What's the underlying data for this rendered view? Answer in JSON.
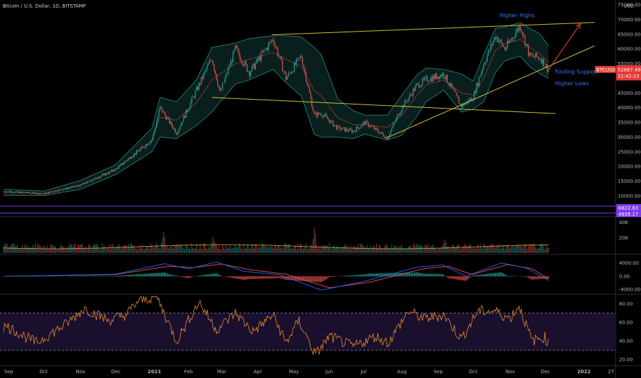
{
  "header": {
    "title": "Bitcoin / U.S. Dollar, 1D, BITSTAMP",
    "currency": "USD"
  },
  "colors": {
    "background": "#000000",
    "up": "#26a69a",
    "down": "#ef5350",
    "bollinger": "#2a8f87",
    "bollinger_fill": "#0b2a27",
    "basis": "#c2454a",
    "trendline": "#d4c234",
    "arrow": "#e53935",
    "annotation": "#3179f5",
    "volume_ma": "#f0a030",
    "macd": "#2962ff",
    "signal": "#ef5350",
    "rsi": "#e8902a",
    "rsi_band": "#1b0f2e",
    "purple_line": "#7c3aed",
    "price_badge": "#e53935"
  },
  "annotations": {
    "higher_highs": "Higher Highs",
    "finding_support": "Finding Support?",
    "higher_lows": "Higher Lows"
  },
  "badges": {
    "symbol": "BTCUSD",
    "price": "52887.49",
    "countdown": "21:42:23",
    "purple_top": "6822.83",
    "purple_bottom": "4939.17"
  },
  "chart_data": [
    {
      "type": "line",
      "name": "price",
      "title": "Bitcoin / U.S. Dollar, 1D, BITSTAMP",
      "x_ticks": [
        "Sep",
        "Oct",
        "Nov",
        "Dec",
        "2021",
        "Feb",
        "Mar",
        "Apr",
        "May",
        "Jun",
        "Jul",
        "Aug",
        "Sep",
        "Oct",
        "Nov",
        "Dec",
        "2022",
        "27"
      ],
      "y_ticks": [
        10000,
        15000,
        20000,
        25000,
        30000,
        35000,
        40000,
        45000,
        50000,
        55000,
        60000,
        65000,
        70000,
        75000
      ],
      "y_tick_labels": [
        "10000.00",
        "15000.00",
        "20000.00",
        "25000.00",
        "30000.00",
        "35000.00",
        "40000.00",
        "45000.00",
        "50000.00",
        "55000.00",
        "60000.00",
        "65000.00",
        "70000.00",
        "75000.00"
      ],
      "ylim": [
        5000,
        75000
      ],
      "series": [
        {
          "x": [
            "2020-09-01",
            "2020-10-01",
            "2020-11-01",
            "2020-12-01",
            "2021-01-01",
            "2021-01-08",
            "2021-01-22",
            "2021-02-08",
            "2021-02-21",
            "2021-02-28",
            "2021-03-13",
            "2021-03-25",
            "2021-04-14",
            "2021-04-25",
            "2021-05-08",
            "2021-05-19",
            "2021-05-25",
            "2021-06-08",
            "2021-06-21",
            "2021-07-01",
            "2021-07-20",
            "2021-08-01",
            "2021-08-14",
            "2021-08-22",
            "2021-09-06",
            "2021-09-21",
            "2021-10-01",
            "2021-10-10",
            "2021-10-20",
            "2021-10-28",
            "2021-11-10",
            "2021-11-18",
            "2021-11-27",
            "2021-12-04"
          ],
          "values": [
            11500,
            10700,
            13500,
            19000,
            29000,
            40000,
            31500,
            46000,
            57000,
            45000,
            60000,
            52000,
            63500,
            50000,
            57500,
            37500,
            38000,
            33000,
            32000,
            35000,
            29800,
            39800,
            47500,
            49500,
            51500,
            40500,
            43500,
            55000,
            64500,
            60000,
            68000,
            57500,
            57000,
            52887
          ]
        }
      ],
      "bollinger_upper": [
        12200,
        11600,
        15200,
        20500,
        33000,
        43500,
        42000,
        49500,
        60500,
        61000,
        62000,
        63500,
        64500,
        64500,
        64000,
        60500,
        58000,
        43000,
        39000,
        37500,
        37500,
        44000,
        51000,
        53500,
        53000,
        51500,
        49000,
        58000,
        67000,
        67500,
        69000,
        67000,
        65000,
        61000
      ],
      "bollinger_lower": [
        10200,
        10100,
        12200,
        17200,
        25000,
        30000,
        29500,
        34000,
        38500,
        42000,
        48000,
        49500,
        53000,
        48500,
        44000,
        31000,
        30000,
        30000,
        29500,
        31000,
        29000,
        30500,
        37000,
        42000,
        46000,
        38500,
        39500,
        42000,
        52000,
        56000,
        57500,
        54000,
        51500,
        50000
      ],
      "trendlines": [
        {
          "name": "upper resistance",
          "points": [
            [
              "2021-04-13",
              64800
            ],
            [
              "2022-01-12",
              69000
            ]
          ]
        },
        {
          "name": "lower channel",
          "points": [
            [
              "2021-02-21",
              43500
            ],
            [
              "2021-12-10",
              38000
            ]
          ]
        },
        {
          "name": "rising support",
          "points": [
            [
              "2021-07-20",
              29800
            ],
            [
              "2022-01-12",
              61000
            ]
          ]
        }
      ],
      "projection_arrow": {
        "from": [
          "2021-12-04",
          52887
        ],
        "to": [
          "2021-12-31",
          68500
        ]
      }
    },
    {
      "type": "bar",
      "name": "volume",
      "y_ticks": [
        20000,
        40000
      ],
      "y_tick_labels": [
        "20K",
        "40K"
      ],
      "ylim": [
        0,
        45000
      ],
      "peaks": [
        [
          "2020-09-05",
          14000
        ],
        [
          "2021-01-11",
          40000
        ],
        [
          "2021-02-22",
          30000
        ],
        [
          "2021-05-19",
          38000
        ],
        [
          "2021-09-07",
          24000
        ]
      ],
      "ma_level": 9000
    },
    {
      "type": "line",
      "name": "MACD",
      "y_ticks": [
        -4000,
        0,
        4000
      ],
      "y_tick_labels": [
        "-4000.00",
        "0.00",
        "4000.00"
      ],
      "ylim": [
        -5000,
        6000
      ],
      "series": [
        {
          "name": "MACD",
          "x": [
            "2020-09-01",
            "2020-12-01",
            "2021-01-12",
            "2021-02-01",
            "2021-02-25",
            "2021-03-20",
            "2021-04-20",
            "2021-05-25",
            "2021-07-01",
            "2021-08-15",
            "2021-09-05",
            "2021-09-25",
            "2021-10-25",
            "2021-11-15",
            "2021-12-04"
          ],
          "values": [
            0,
            600,
            3800,
            2200,
            4300,
            1500,
            400,
            -4200,
            -1500,
            2800,
            3400,
            0,
            4000,
            2500,
            -1300
          ]
        },
        {
          "name": "Signal",
          "x": [
            "2020-09-01",
            "2020-12-01",
            "2021-01-15",
            "2021-02-05",
            "2021-03-01",
            "2021-03-25",
            "2021-04-25",
            "2021-06-01",
            "2021-07-05",
            "2021-08-20",
            "2021-09-10",
            "2021-09-30",
            "2021-10-30",
            "2021-11-20",
            "2021-12-04"
          ],
          "values": [
            0,
            500,
            3000,
            2600,
            3700,
            2000,
            600,
            -3500,
            -1800,
            2300,
            3000,
            500,
            3500,
            2300,
            -800
          ]
        }
      ]
    },
    {
      "type": "line",
      "name": "RSI",
      "y_ticks": [
        20,
        40,
        60,
        80
      ],
      "y_tick_labels": [
        "20.00",
        "40.00",
        "60.00",
        "80.00"
      ],
      "ylim": [
        15,
        88
      ],
      "bands": [
        30,
        70
      ],
      "series": [
        {
          "x": [
            "2020-09-01",
            "2020-09-25",
            "2020-10-20",
            "2020-11-05",
            "2020-11-25",
            "2020-12-10",
            "2020-12-20",
            "2021-01-05",
            "2021-01-22",
            "2021-02-10",
            "2021-02-25",
            "2021-03-13",
            "2021-03-28",
            "2021-04-14",
            "2021-04-25",
            "2021-05-06",
            "2021-05-20",
            "2021-06-01",
            "2021-06-21",
            "2021-07-10",
            "2021-07-21",
            "2021-08-07",
            "2021-08-20",
            "2021-09-06",
            "2021-09-21",
            "2021-10-05",
            "2021-10-20",
            "2021-11-01",
            "2021-11-09",
            "2021-11-20",
            "2021-12-01",
            "2021-12-04"
          ],
          "values": [
            55,
            38,
            58,
            75,
            62,
            68,
            82,
            88,
            40,
            82,
            52,
            70,
            50,
            68,
            38,
            62,
            25,
            45,
            34,
            45,
            38,
            72,
            64,
            68,
            42,
            72,
            72,
            64,
            78,
            40,
            44,
            37
          ]
        }
      ]
    }
  ]
}
